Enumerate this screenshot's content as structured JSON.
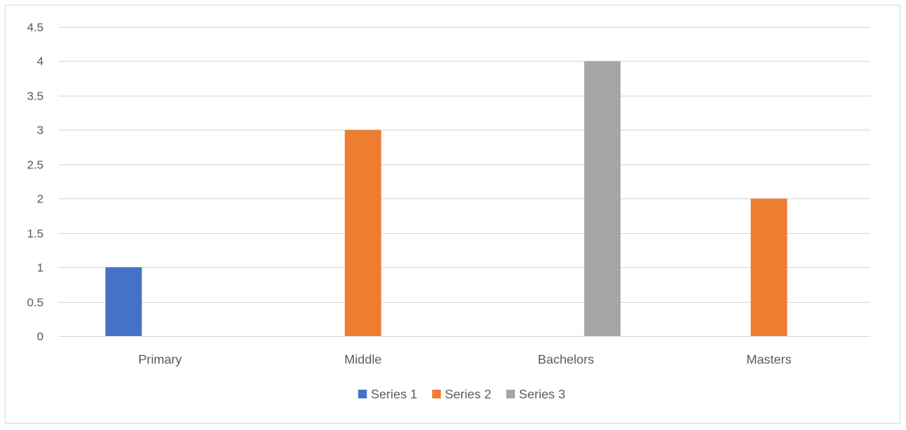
{
  "chart_data": {
    "type": "bar",
    "categories": [
      "Primary",
      "Middle",
      "Bachelors",
      "Masters"
    ],
    "series": [
      {
        "name": "Series 1",
        "values": [
          1,
          null,
          null,
          null
        ],
        "color": "#4472c4"
      },
      {
        "name": "Series 2",
        "values": [
          null,
          3,
          null,
          2
        ],
        "color": "#ed7d31"
      },
      {
        "name": "Series 3",
        "values": [
          null,
          null,
          4,
          null
        ],
        "color": "#a5a5a5"
      }
    ],
    "ylim": [
      0,
      4.5
    ],
    "yticks": [
      "0",
      "0.5",
      "1",
      "1.5",
      "2",
      "2.5",
      "3",
      "3.5",
      "4",
      "4.5"
    ],
    "ytick_values": [
      0,
      0.5,
      1,
      1.5,
      2,
      2.5,
      3,
      3.5,
      4,
      4.5
    ],
    "grid": true,
    "legend": "bottom",
    "title": "",
    "xlabel": "",
    "ylabel": ""
  }
}
